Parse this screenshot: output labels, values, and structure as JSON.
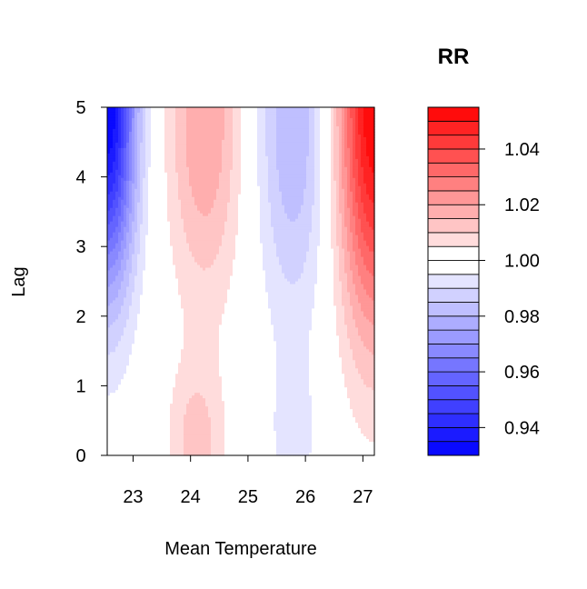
{
  "chart_data": {
    "type": "heatmap",
    "subtype": "filled-contour",
    "title": "",
    "xlabel": "Mean Temperature",
    "ylabel": "Lag",
    "legend_title": "RR",
    "xlim": [
      22.55,
      27.2
    ],
    "ylim": [
      0,
      5
    ],
    "x_ticks": [
      23,
      24,
      25,
      26,
      27
    ],
    "y_ticks": [
      0,
      1,
      2,
      3,
      4,
      5
    ],
    "legend_ticks": [
      0.94,
      0.96,
      0.98,
      1.0,
      1.02,
      1.04
    ],
    "legend_tick_labels": [
      "0.94",
      "0.96",
      "0.98",
      "1.00",
      "1.02",
      "1.04"
    ],
    "legend_range": [
      0.93,
      1.055
    ],
    "levels": [
      0.93,
      0.935,
      0.94,
      0.945,
      0.95,
      0.955,
      0.96,
      0.965,
      0.97,
      0.975,
      0.98,
      0.985,
      0.99,
      0.995,
      1.0,
      1.005,
      1.01,
      1.015,
      1.02,
      1.025,
      1.03,
      1.035,
      1.04,
      1.045,
      1.05,
      1.055
    ],
    "colors": {
      "low": "#0000ff",
      "mid": "#ffffff",
      "high": "#ff0000"
    },
    "features": [
      {
        "x": 22.55,
        "lag": 5.0,
        "rr": 0.93,
        "spread_x": 0.35,
        "spread_lag": 1.8
      },
      {
        "x": 24.25,
        "lag": 4.8,
        "rr": 1.02,
        "spread_x": 0.45,
        "spread_lag": 1.8
      },
      {
        "x": 24.1,
        "lag": 0.2,
        "rr": 1.012,
        "spread_x": 0.35,
        "spread_lag": 0.8
      },
      {
        "x": 25.8,
        "lag": 4.8,
        "rr": 0.98,
        "spread_x": 0.45,
        "spread_lag": 2.0
      },
      {
        "x": 25.8,
        "lag": 0.2,
        "rr": 0.994,
        "spread_x": 0.35,
        "spread_lag": 0.8
      },
      {
        "x": 27.2,
        "lag": 5.0,
        "rr": 1.055,
        "spread_x": 0.45,
        "spread_lag": 2.2
      }
    ]
  }
}
